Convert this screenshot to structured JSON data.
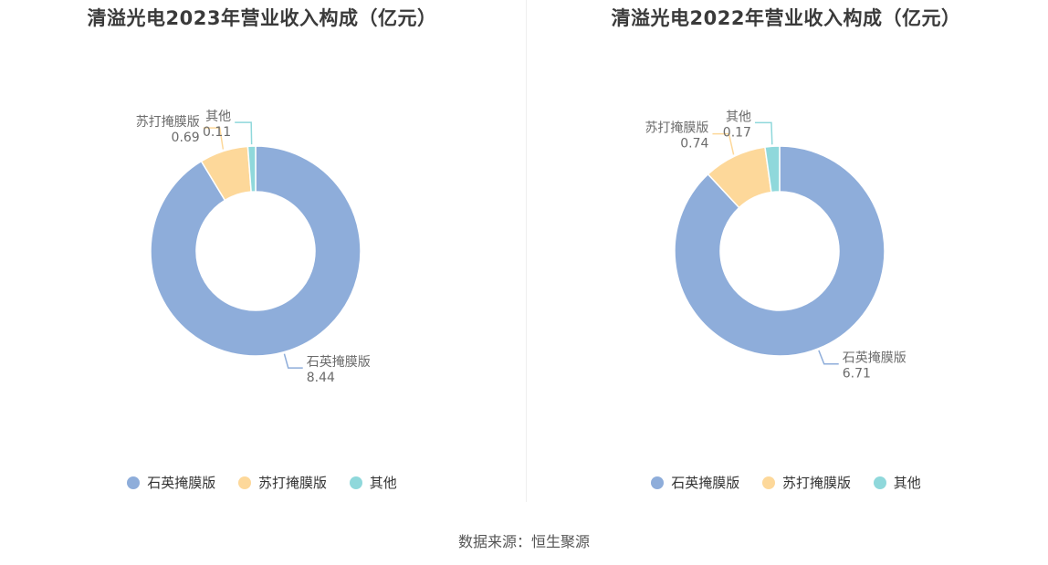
{
  "colors": {
    "石英掩膜版": "#8eadda",
    "苏打掩膜版": "#fdd89a",
    "其他": "#8fd8db"
  },
  "source": "数据来源：恒生聚源",
  "chart_data": [
    {
      "type": "pie",
      "title": "清溢光电2023年营业收入构成（亿元）",
      "categories": [
        "石英掩膜版",
        "苏打掩膜版",
        "其他"
      ],
      "values": [
        8.44,
        0.69,
        0.11
      ],
      "legend": "bottom"
    },
    {
      "type": "pie",
      "title": "清溢光电2022年营业收入构成（亿元）",
      "categories": [
        "石英掩膜版",
        "苏打掩膜版",
        "其他"
      ],
      "values": [
        6.71,
        0.74,
        0.17
      ],
      "legend": "bottom"
    }
  ]
}
